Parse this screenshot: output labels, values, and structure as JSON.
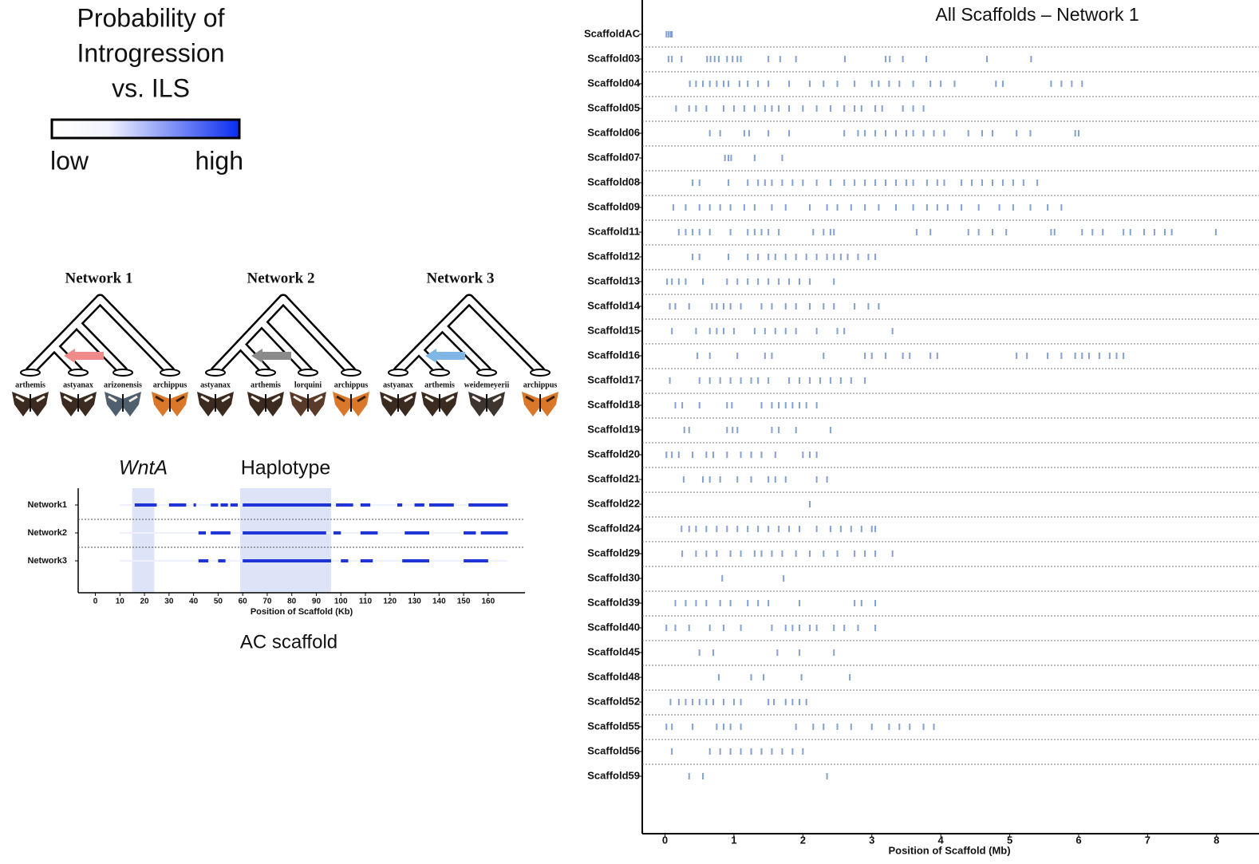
{
  "legend": {
    "title_lines": [
      "Probability of",
      "Introgression",
      "vs. ILS"
    ],
    "low": "low",
    "high": "high"
  },
  "networks": [
    {
      "title": "Network 1",
      "taxa": [
        "arthemis",
        "astyanax",
        "arizonensis",
        "archippus"
      ],
      "arrow_color": "#ee8a8a"
    },
    {
      "title": "Network 2",
      "taxa": [
        "astyanax",
        "arthemis",
        "lorquini",
        "archippus"
      ],
      "arrow_color": "#8a8a8a"
    },
    {
      "title": "Network 3",
      "taxa": [
        "astyanax",
        "arthemis",
        "weidemeyerii",
        "archippus"
      ],
      "arrow_color": "#7fb6e6"
    }
  ],
  "chart_data": [
    {
      "type": "segment",
      "caption": "AC scaffold",
      "x_label": "Position of Scaffold (Kb)",
      "categories": [
        "Network1",
        "Network2",
        "Network3"
      ],
      "highlights": [
        {
          "label": "WntA",
          "range": [
            15,
            24
          ]
        },
        {
          "label": "Haplotype",
          "range": [
            59,
            96
          ]
        }
      ],
      "xlim": [
        -7,
        175
      ],
      "xticks": [
        0,
        10,
        20,
        30,
        40,
        50,
        60,
        70,
        80,
        90,
        100,
        110,
        120,
        130,
        140,
        150,
        160
      ],
      "color": "#1f35d6",
      "series": [
        {
          "name": "Network1",
          "segments": [
            [
              16,
              25
            ],
            [
              30,
              37
            ],
            [
              40,
              41
            ],
            [
              47,
              50
            ],
            [
              51,
              54
            ],
            [
              55,
              58
            ],
            [
              60,
              96
            ],
            [
              98,
              105
            ],
            [
              108,
              112
            ],
            [
              123,
              125
            ],
            [
              130,
              134
            ],
            [
              136,
              146
            ],
            [
              152,
              168
            ]
          ]
        },
        {
          "name": "Network2",
          "segments": [
            [
              42,
              45
            ],
            [
              47,
              55
            ],
            [
              60,
              94
            ],
            [
              97,
              100
            ],
            [
              108,
              115
            ],
            [
              126,
              136
            ],
            [
              150,
              155
            ],
            [
              157,
              168
            ]
          ]
        },
        {
          "name": "Network3",
          "segments": [
            [
              42,
              46
            ],
            [
              50,
              53
            ],
            [
              60,
              96
            ],
            [
              100,
              103
            ],
            [
              108,
              113
            ],
            [
              125,
              136
            ],
            [
              150,
              160
            ]
          ]
        }
      ]
    },
    {
      "type": "strip",
      "title": "All Scaffolds – Network 1",
      "x_label": "Position of Scaffold (Mb)",
      "xlim": [
        -0.33,
        8.5
      ],
      "xticks": [
        0,
        1,
        2,
        3,
        4,
        5,
        6,
        7,
        8
      ],
      "color": "#5b82c0",
      "categories": [
        "ScaffoldAC",
        "Scaffold03",
        "Scaffold04",
        "Scaffold05",
        "Scaffold06",
        "Scaffold07",
        "Scaffold08",
        "Scaffold09",
        "Scaffold11",
        "Scaffold12",
        "Scaffold13",
        "Scaffold14",
        "Scaffold15",
        "Scaffold16",
        "Scaffold17",
        "Scaffold18",
        "Scaffold19",
        "Scaffold20",
        "Scaffold21",
        "Scaffold22",
        "Scaffold24",
        "Scaffold29",
        "Scaffold30",
        "Scaffold39",
        "Scaffold40",
        "Scaffold45",
        "Scaffold48",
        "Scaffold52",
        "Scaffold55",
        "Scaffold56",
        "Scaffold59"
      ],
      "positions": [
        [
          0.02,
          0.05,
          0.08,
          0.1
        ],
        [
          0.05,
          0.1,
          0.24,
          0.61,
          0.66,
          0.72,
          0.78,
          0.9,
          0.98,
          1.05,
          1.1,
          1.5,
          1.67,
          1.9,
          2.61,
          3.2,
          3.26,
          3.45,
          3.79,
          4.67,
          5.31
        ],
        [
          0.36,
          0.45,
          0.55,
          0.65,
          0.75,
          0.85,
          0.92,
          1.08,
          1.2,
          1.35,
          1.5,
          1.8,
          2.1,
          2.3,
          2.5,
          2.75,
          3.0,
          3.1,
          3.25,
          3.4,
          3.6,
          3.85,
          4.0,
          4.2,
          4.8,
          4.9,
          5.6,
          5.75,
          5.9,
          6.05
        ],
        [
          0.16,
          0.35,
          0.45,
          0.6,
          0.85,
          1.0,
          1.15,
          1.3,
          1.45,
          1.55,
          1.65,
          1.8,
          2.0,
          2.2,
          2.4,
          2.6,
          2.75,
          2.85,
          3.05,
          3.15,
          3.45,
          3.6,
          3.75
        ],
        [
          0.65,
          0.8,
          1.15,
          1.22,
          1.5,
          1.8,
          2.6,
          2.8,
          2.9,
          3.05,
          3.2,
          3.35,
          3.5,
          3.6,
          3.75,
          3.9,
          4.05,
          4.4,
          4.6,
          4.75,
          5.1,
          5.3,
          5.95,
          6.0
        ],
        [
          0.87,
          0.92,
          0.96,
          1.3,
          1.7
        ],
        [
          0.4,
          0.5,
          0.92,
          1.2,
          1.35,
          1.45,
          1.55,
          1.7,
          1.85,
          2.0,
          2.2,
          2.4,
          2.6,
          2.75,
          2.9,
          3.05,
          3.2,
          3.35,
          3.5,
          3.6,
          3.8,
          3.95,
          4.05,
          4.3,
          4.45,
          4.6,
          4.75,
          4.9,
          5.05,
          5.2,
          5.4
        ],
        [
          0.12,
          0.3,
          0.5,
          0.65,
          0.8,
          0.95,
          1.15,
          1.3,
          1.55,
          1.75,
          2.1,
          2.35,
          2.5,
          2.7,
          2.9,
          3.1,
          3.35,
          3.6,
          3.8,
          3.95,
          4.1,
          4.3,
          4.55,
          4.85,
          5.05,
          5.3,
          5.55,
          5.75
        ],
        [
          0.2,
          0.3,
          0.4,
          0.5,
          0.65,
          0.95,
          1.2,
          1.3,
          1.4,
          1.5,
          1.65,
          2.15,
          2.3,
          2.4,
          2.45,
          3.65,
          3.85,
          4.4,
          4.55,
          4.75,
          4.95,
          5.6,
          5.65,
          6.05,
          6.2,
          6.35,
          6.65,
          6.75,
          6.95,
          7.1,
          7.25,
          7.35,
          7.99
        ],
        [
          0.4,
          0.5,
          0.92,
          1.2,
          1.35,
          1.5,
          1.6,
          1.75,
          1.9,
          2.05,
          2.2,
          2.35,
          2.45,
          2.55,
          2.65,
          2.8,
          2.95,
          3.05
        ],
        [
          0.03,
          0.1,
          0.2,
          0.3,
          0.55,
          0.9,
          1.05,
          1.2,
          1.35,
          1.5,
          1.65,
          1.8,
          1.95,
          2.1,
          2.45
        ],
        [
          0.07,
          0.15,
          0.35,
          0.68,
          0.75,
          0.85,
          0.95,
          1.1,
          1.4,
          1.55,
          1.75,
          1.9,
          2.1,
          2.3,
          2.45,
          2.75,
          2.95,
          3.1
        ],
        [
          0.1,
          0.45,
          0.65,
          0.75,
          0.85,
          1.0,
          1.3,
          1.45,
          1.6,
          1.75,
          1.9,
          2.2,
          2.5,
          2.6,
          3.3
        ],
        [
          0.47,
          0.65,
          1.05,
          1.45,
          1.55,
          2.3,
          2.9,
          3.0,
          3.2,
          3.45,
          3.55,
          3.85,
          3.95,
          5.1,
          5.25,
          5.55,
          5.75,
          5.95,
          6.05,
          6.15,
          6.3,
          6.45,
          6.55,
          6.65
        ],
        [
          0.07,
          0.5,
          0.65,
          0.8,
          0.95,
          1.1,
          1.25,
          1.35,
          1.5,
          1.8,
          1.95,
          2.1,
          2.25,
          2.4,
          2.55,
          2.7,
          2.9
        ],
        [
          0.15,
          0.25,
          0.5,
          0.9,
          0.97,
          1.4,
          1.55,
          1.65,
          1.75,
          1.85,
          1.95,
          2.05,
          2.2
        ],
        [
          0.28,
          0.35,
          0.9,
          0.98,
          1.05,
          1.55,
          1.65,
          1.9,
          2.4
        ],
        [
          0.02,
          0.1,
          0.2,
          0.4,
          0.6,
          0.7,
          0.9,
          1.1,
          1.25,
          1.4,
          1.6,
          2.0,
          2.1,
          2.2
        ],
        [
          0.27,
          0.55,
          0.65,
          0.8,
          1.05,
          1.25,
          1.5,
          1.6,
          1.75,
          2.2,
          2.35
        ],
        [
          2.1
        ],
        [
          0.24,
          0.35,
          0.45,
          0.6,
          0.75,
          0.9,
          1.05,
          1.2,
          1.35,
          1.5,
          1.65,
          1.8,
          1.95,
          2.2,
          2.4,
          2.55,
          2.7,
          2.85,
          3.0,
          3.05
        ],
        [
          0.25,
          0.45,
          0.6,
          0.75,
          0.95,
          1.1,
          1.3,
          1.4,
          1.55,
          1.7,
          1.9,
          2.1,
          2.3,
          2.5,
          2.75,
          2.9,
          3.05,
          3.3
        ],
        [
          0.83,
          1.72
        ],
        [
          0.15,
          0.3,
          0.45,
          0.6,
          0.8,
          0.95,
          1.2,
          1.35,
          1.5,
          1.95,
          2.75,
          2.85,
          3.05
        ],
        [
          0.02,
          0.15,
          0.35,
          0.65,
          0.85,
          1.1,
          1.55,
          1.75,
          1.85,
          1.95,
          2.1,
          2.2,
          2.45,
          2.6,
          2.8,
          3.05
        ],
        [
          0.5,
          0.7,
          1.63,
          1.95,
          2.45
        ],
        [
          0.78,
          1.25,
          1.43,
          1.98,
          2.68
        ],
        [
          0.08,
          0.2,
          0.3,
          0.4,
          0.5,
          0.6,
          0.7,
          0.85,
          1.0,
          1.1,
          1.5,
          1.58,
          1.75,
          1.85,
          1.95,
          2.05
        ],
        [
          0.02,
          0.1,
          0.4,
          0.75,
          0.85,
          0.95,
          1.1,
          1.9,
          2.15,
          2.3,
          2.5,
          2.7,
          3.0,
          3.25,
          3.4,
          3.55,
          3.75,
          3.9
        ],
        [
          0.1,
          0.65,
          0.8,
          0.95,
          1.1,
          1.25,
          1.4,
          1.55,
          1.7,
          1.85,
          2.0
        ],
        [
          0.35,
          0.55,
          2.35
        ]
      ]
    }
  ]
}
